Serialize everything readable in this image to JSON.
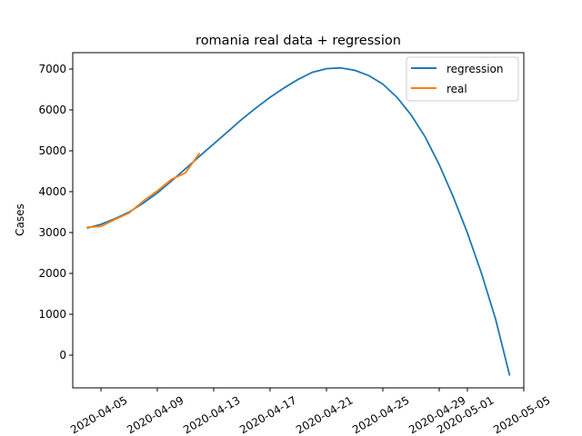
{
  "chart_data": {
    "type": "line",
    "title": "romania real data + regression",
    "xlabel": "",
    "ylabel": "Cases",
    "x_is_date": true,
    "xlim": [
      "2020-04-03",
      "2020-05-05"
    ],
    "ylim": [
      -800,
      7400
    ],
    "x_ticks": [
      "2020-04-05",
      "2020-04-09",
      "2020-04-13",
      "2020-04-17",
      "2020-04-21",
      "2020-04-25",
      "2020-04-29",
      "2020-05-01",
      "2020-05-05"
    ],
    "y_ticks": [
      0,
      1000,
      2000,
      3000,
      4000,
      5000,
      6000,
      7000
    ],
    "legend_position": "top-right",
    "grid": false,
    "series": [
      {
        "name": "regression",
        "color": "#1f77b4",
        "x": [
          "2020-04-04",
          "2020-04-05",
          "2020-04-06",
          "2020-04-07",
          "2020-04-08",
          "2020-04-09",
          "2020-04-10",
          "2020-04-11",
          "2020-04-12",
          "2020-04-13",
          "2020-04-14",
          "2020-04-15",
          "2020-04-16",
          "2020-04-17",
          "2020-04-18",
          "2020-04-19",
          "2020-04-20",
          "2020-04-21",
          "2020-04-22",
          "2020-04-23",
          "2020-04-24",
          "2020-04-25",
          "2020-04-26",
          "2020-04-27",
          "2020-04-28",
          "2020-04-29",
          "2020-04-30",
          "2020-05-01",
          "2020-05-02",
          "2020-05-03",
          "2020-05-04"
        ],
        "values": [
          3110,
          3200,
          3340,
          3500,
          3720,
          3970,
          4260,
          4560,
          4870,
          5170,
          5470,
          5770,
          6050,
          6310,
          6540,
          6750,
          6920,
          7010,
          7030,
          6970,
          6840,
          6630,
          6310,
          5880,
          5340,
          4660,
          3870,
          2990,
          2000,
          880,
          -500
        ]
      },
      {
        "name": "real",
        "color": "#ff7f0e",
        "x": [
          "2020-04-04",
          "2020-04-05",
          "2020-04-06",
          "2020-04-07",
          "2020-04-08",
          "2020-04-09",
          "2020-04-10",
          "2020-04-11",
          "2020-04-12"
        ],
        "values": [
          3130,
          3150,
          3320,
          3480,
          3770,
          4020,
          4300,
          4460,
          4950
        ]
      }
    ]
  }
}
